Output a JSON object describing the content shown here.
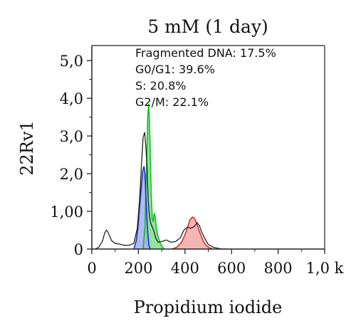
{
  "chart_data": {
    "type": "area",
    "title": "5 mM (1 day)",
    "xlabel": "Propidium iodide",
    "ylabel": "22Rv1",
    "xlim": [
      0,
      1000
    ],
    "ylim": [
      0,
      5.4
    ],
    "x_ticks": [
      0,
      200,
      400,
      600,
      800,
      1000
    ],
    "x_tick_labels": [
      "0",
      "200",
      "400",
      "600",
      "800",
      "1,0 k"
    ],
    "y_ticks": [
      0,
      1,
      2,
      3,
      4,
      5
    ],
    "y_tick_labels": [
      "0",
      "1,00",
      "2,0",
      "3,0",
      "4,0",
      "5,0"
    ],
    "annotations": [
      "Fragmented DNA: 17.5%",
      "G0/G1: 39.6%",
      "S: 20.8%",
      "G2/M: 22.1%"
    ],
    "colors": {
      "histogram": "#222222",
      "g0g1_fill": "#9fb0ef",
      "g0g1_line": "#1a2fbf",
      "s_fill": "#7ee18a",
      "s_line": "#10c020",
      "g2m_fill": "#f4a8a8",
      "g2m_line": "#d03030"
    },
    "series": [
      {
        "x": [
          15,
          30,
          45,
          55,
          62,
          68,
          75,
          85,
          100,
          120,
          140,
          160,
          180,
          195,
          205,
          212,
          220,
          227,
          232,
          237,
          242,
          247,
          252,
          257,
          262,
          268,
          275,
          285,
          300,
          320,
          340,
          360,
          380,
          395,
          410,
          425,
          440,
          452,
          462,
          472,
          485,
          500,
          520,
          540,
          560,
          580
        ],
        "values": [
          0,
          0.05,
          0.2,
          0.42,
          0.5,
          0.47,
          0.36,
          0.22,
          0.15,
          0.13,
          0.1,
          0.1,
          0.15,
          0.55,
          1.3,
          2.1,
          2.95,
          3.1,
          2.7,
          2.2,
          1.3,
          0.9,
          0.7,
          0.62,
          0.55,
          0.45,
          0.28,
          0.18,
          0.2,
          0.24,
          0.18,
          0.2,
          0.3,
          0.5,
          0.58,
          0.55,
          0.6,
          0.7,
          0.62,
          0.45,
          0.28,
          0.12,
          0.05,
          0.02,
          0.0,
          0.0
        ]
      },
      {
        "x": [
          180,
          190,
          198,
          205,
          212,
          218,
          224,
          228,
          232,
          237,
          242,
          246,
          250
        ],
        "values": [
          0,
          0.2,
          0.55,
          1.1,
          1.6,
          2.05,
          2.2,
          2.0,
          1.4,
          0.75,
          0.3,
          0.08,
          0
        ]
      },
      {
        "x": [
          220,
          228,
          235,
          240,
          244,
          248,
          252,
          256,
          260,
          264,
          268,
          272,
          276,
          282,
          290,
          300,
          310
        ],
        "values": [
          0,
          0.6,
          2.2,
          3.5,
          3.85,
          3.3,
          2.2,
          1.3,
          0.8,
          0.72,
          0.95,
          0.88,
          0.62,
          0.38,
          0.22,
          0.08,
          0
        ]
      },
      {
        "x": [
          345,
          365,
          385,
          400,
          412,
          422,
          432,
          440,
          448,
          456,
          466,
          478,
          490,
          505,
          520
        ],
        "values": [
          0,
          0.05,
          0.18,
          0.38,
          0.6,
          0.78,
          0.85,
          0.82,
          0.72,
          0.58,
          0.4,
          0.22,
          0.1,
          0.03,
          0
        ]
      }
    ]
  }
}
